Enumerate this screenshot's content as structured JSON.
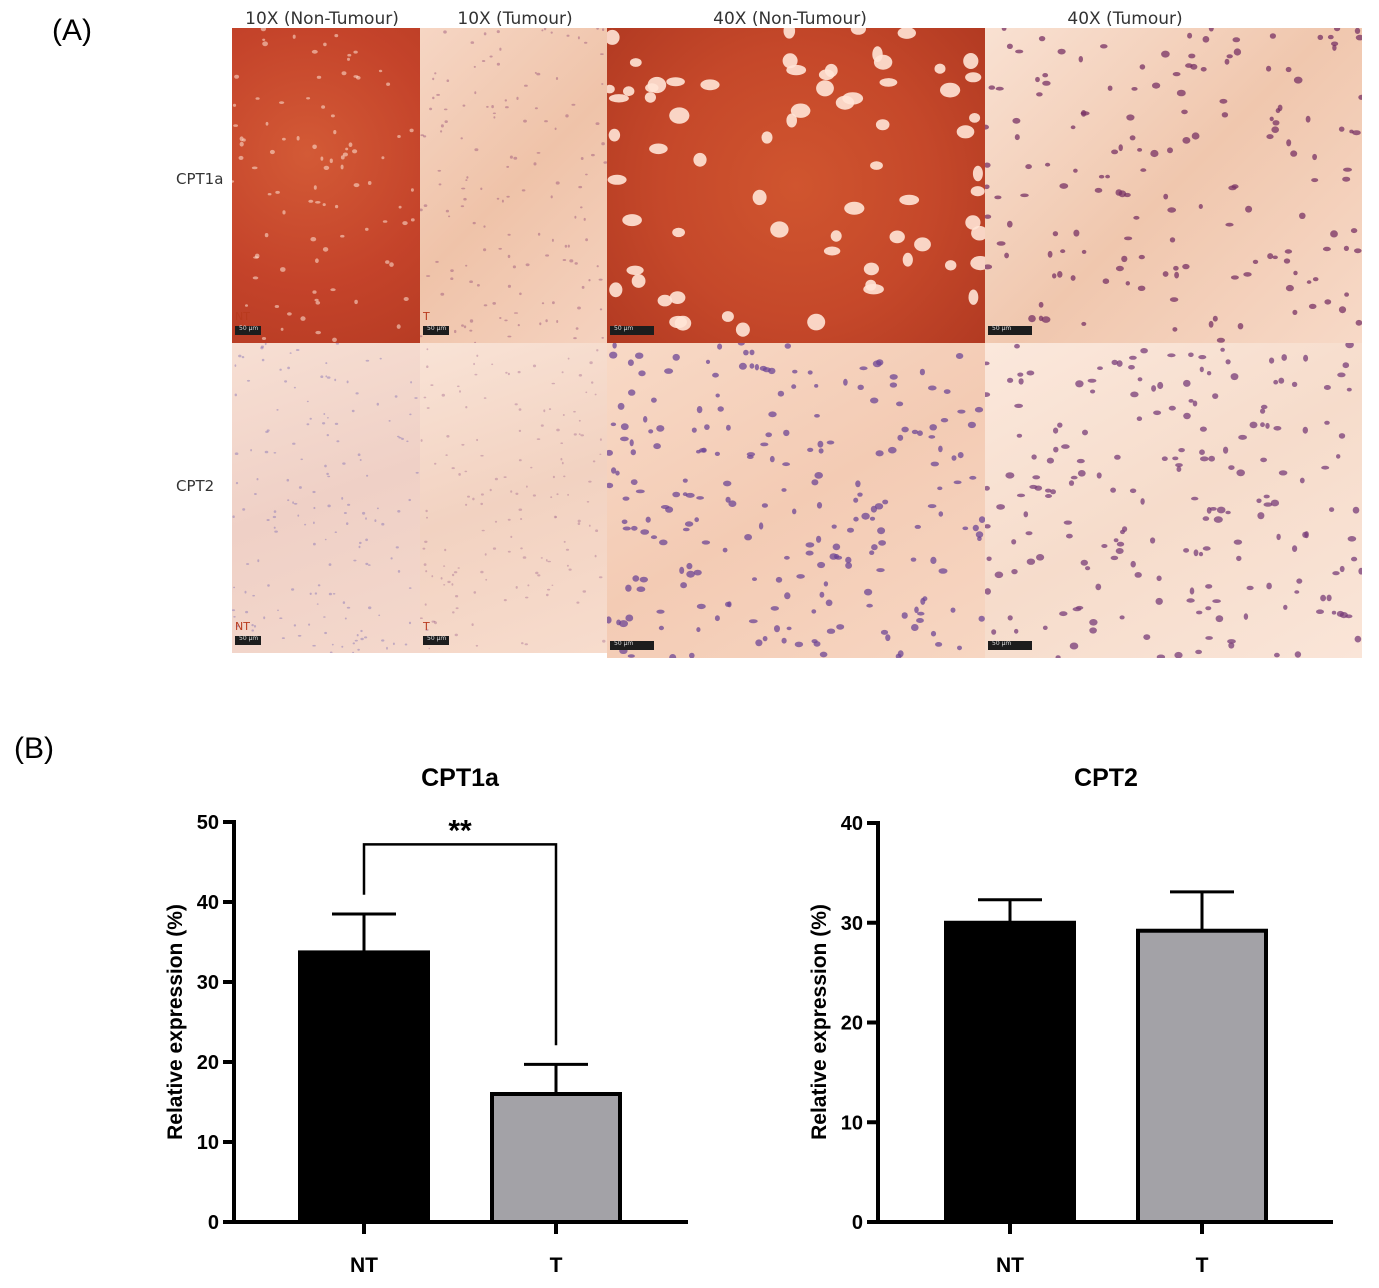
{
  "panel_a": {
    "label": "(A)",
    "column_headers": [
      "10X (Non-Tumour)",
      "10X (Tumour)",
      "40X (Non-Tumour)",
      "40X (Tumour)"
    ],
    "row_headers": [
      "CPT1a",
      "CPT2"
    ],
    "tile_tags": [
      "NT",
      "T",
      "",
      "",
      "NT",
      "T",
      "",
      ""
    ],
    "scale_bar_text": "50 µm",
    "colors": {
      "cpt1a_nontumour_stain": "#c8492a",
      "cpt1a_tumour_stain": "#f2c3a8",
      "cpt2_stain": "#f5d3c2",
      "nuclei": "#7a3a78"
    }
  },
  "panel_b": {
    "label": "(B)"
  },
  "chart_data": [
    {
      "type": "bar",
      "title": "CPT1a",
      "ylabel": "Relative expression (%)",
      "xlabel": "",
      "categories": [
        "NT",
        "T"
      ],
      "values": [
        33.7,
        16.0
      ],
      "error": [
        4.8,
        3.7
      ],
      "colors": [
        "#000000",
        "#a3a2a7"
      ],
      "ylim": [
        0,
        50
      ],
      "yticks": [
        0,
        10,
        20,
        30,
        40,
        50
      ],
      "significance": {
        "between": [
          "NT",
          "T"
        ],
        "label": "**"
      },
      "grid": false
    },
    {
      "type": "bar",
      "title": "CPT2",
      "ylabel": "Relative expression (%)",
      "xlabel": "",
      "categories": [
        "NT",
        "T"
      ],
      "values": [
        30.0,
        29.2
      ],
      "error": [
        2.3,
        3.9
      ],
      "colors": [
        "#000000",
        "#a3a2a7"
      ],
      "ylim": [
        0,
        40
      ],
      "yticks": [
        0,
        10,
        20,
        30,
        40
      ],
      "grid": false
    }
  ]
}
